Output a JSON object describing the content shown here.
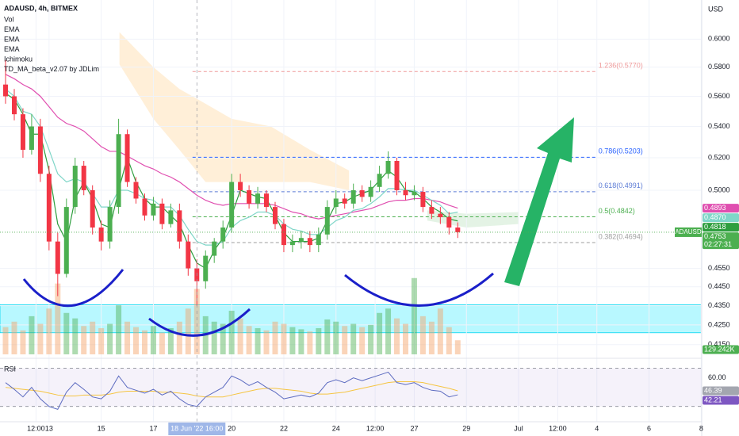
{
  "chart_data": {
    "type": "candlestick",
    "title": "ADAUSD, 4h, BITMEX",
    "legend": [
      "Vol",
      "EMA",
      "EMA",
      "EMA",
      "Ichimoku",
      "TD_MA_beta_v2.07 by JDLim"
    ],
    "currency": "USD",
    "symbol": "ADAUSD",
    "countdown": "02:27:31",
    "log_scale": true,
    "grid": true,
    "up_color": "#4caf50",
    "down_color": "#f23645",
    "xlim": [
      11.12,
      38.02
    ],
    "xticks": [
      {
        "value": 12.5,
        "label": "12:00"
      },
      13,
      15,
      17,
      20,
      22,
      24,
      {
        "value": 25.5,
        "label": "12:00"
      },
      27,
      29,
      {
        "value": 31,
        "label": "Jul"
      },
      {
        "value": 32.5,
        "label": "12:00"
      },
      {
        "value": 34,
        "label": "4"
      },
      {
        "value": 36,
        "label": "6"
      },
      {
        "value": 38,
        "label": "8"
      }
    ],
    "crosshair": {
      "value": 18.667,
      "label": "18 Jun '22  16:00"
    },
    "ylim": [
      0.409,
      0.629
    ],
    "yticks": [
      {
        "value": 0.6,
        "label": "0.6000"
      },
      {
        "value": 0.58,
        "label": "0.5800"
      },
      {
        "value": 0.56,
        "label": "0.5600"
      },
      {
        "value": 0.54,
        "label": "0.5400"
      },
      {
        "value": 0.52,
        "label": "0.5200"
      },
      {
        "value": 0.5,
        "label": "0.5000"
      },
      {
        "value": 0.455,
        "label": "0.4550"
      },
      {
        "value": 0.445,
        "label": "0.4450"
      },
      {
        "value": 0.435,
        "label": "0.4350"
      },
      {
        "value": 0.425,
        "label": "0.4250"
      },
      {
        "value": 0.415,
        "label": "0.4150"
      }
    ],
    "candles": {
      "x": [
        11.333,
        11.667,
        12,
        12.333,
        12.667,
        13,
        13.333,
        13.667,
        14,
        14.333,
        14.667,
        15,
        15.333,
        15.667,
        16,
        16.333,
        16.667,
        17,
        17.333,
        17.667,
        18,
        18.333,
        18.667,
        19,
        19.333,
        19.667,
        20,
        20.333,
        20.667,
        21,
        21.333,
        21.667,
        22,
        22.333,
        22.667,
        23,
        23.333,
        23.667,
        24,
        24.333,
        24.667,
        25,
        25.333,
        25.667,
        26,
        26.333,
        26.667,
        27,
        27.333,
        27.667,
        28,
        28.333,
        28.667
      ],
      "open": [
        0.568,
        0.56,
        0.548,
        0.525,
        0.54,
        0.51,
        0.47,
        0.452,
        0.49,
        0.515,
        0.5,
        0.478,
        0.47,
        0.49,
        0.535,
        0.505,
        0.495,
        0.485,
        0.492,
        0.48,
        0.488,
        0.47,
        0.455,
        0.448,
        0.462,
        0.47,
        0.478,
        0.505,
        0.5,
        0.492,
        0.498,
        0.49,
        0.48,
        0.468,
        0.47,
        0.472,
        0.468,
        0.474,
        0.49,
        0.495,
        0.492,
        0.5,
        0.496,
        0.502,
        0.51,
        0.518,
        0.5,
        0.497,
        0.499,
        0.49,
        0.486,
        0.484,
        0.478
      ],
      "high": [
        0.585,
        0.565,
        0.552,
        0.548,
        0.545,
        0.515,
        0.475,
        0.495,
        0.52,
        0.518,
        0.503,
        0.482,
        0.494,
        0.545,
        0.538,
        0.508,
        0.498,
        0.496,
        0.495,
        0.492,
        0.492,
        0.474,
        0.46,
        0.465,
        0.472,
        0.482,
        0.51,
        0.51,
        0.503,
        0.502,
        0.5,
        0.493,
        0.483,
        0.474,
        0.476,
        0.476,
        0.478,
        0.494,
        0.5,
        0.498,
        0.504,
        0.503,
        0.506,
        0.515,
        0.524,
        0.52,
        0.505,
        0.503,
        0.502,
        0.494,
        0.49,
        0.487,
        0.481
      ],
      "low": [
        0.555,
        0.544,
        0.52,
        0.522,
        0.505,
        0.465,
        0.44,
        0.45,
        0.486,
        0.497,
        0.474,
        0.465,
        0.466,
        0.486,
        0.502,
        0.492,
        0.482,
        0.482,
        0.477,
        0.478,
        0.466,
        0.451,
        0.435,
        0.444,
        0.458,
        0.466,
        0.475,
        0.496,
        0.489,
        0.489,
        0.487,
        0.477,
        0.464,
        0.464,
        0.466,
        0.464,
        0.464,
        0.471,
        0.486,
        0.489,
        0.489,
        0.493,
        0.493,
        0.499,
        0.507,
        0.497,
        0.494,
        0.494,
        0.487,
        0.483,
        0.48,
        0.474,
        0.472
      ],
      "close": [
        0.56,
        0.548,
        0.525,
        0.54,
        0.51,
        0.47,
        0.452,
        0.49,
        0.515,
        0.5,
        0.478,
        0.47,
        0.49,
        0.535,
        0.505,
        0.495,
        0.485,
        0.492,
        0.48,
        0.488,
        0.47,
        0.455,
        0.448,
        0.462,
        0.47,
        0.478,
        0.505,
        0.5,
        0.492,
        0.498,
        0.49,
        0.48,
        0.468,
        0.47,
        0.472,
        0.468,
        0.474,
        0.49,
        0.495,
        0.492,
        0.5,
        0.496,
        0.502,
        0.51,
        0.518,
        0.5,
        0.497,
        0.499,
        0.49,
        0.486,
        0.484,
        0.478,
        0.4753
      ]
    },
    "lines": [
      {
        "color": "#e04fb0",
        "badge_label": "0.4893",
        "values": [
          0.575,
          0.572,
          0.568,
          0.565,
          0.56,
          0.553,
          0.546,
          0.542,
          0.54,
          0.537,
          0.532,
          0.527,
          0.524,
          0.524,
          0.521,
          0.518,
          0.515,
          0.513,
          0.51,
          0.508,
          0.505,
          0.501,
          0.497,
          0.494,
          0.492,
          0.491,
          0.492,
          0.492,
          0.492,
          0.492,
          0.492,
          0.491,
          0.489,
          0.487,
          0.486,
          0.484,
          0.483,
          0.484,
          0.485,
          0.486,
          0.487,
          0.488,
          0.489,
          0.491,
          0.493,
          0.494,
          0.494,
          0.495,
          0.495,
          0.494,
          0.493,
          0.491,
          0.4893
        ]
      },
      {
        "color": "#7fd6c8",
        "badge_label": "0.4870",
        "values": [
          0.565,
          0.56,
          0.55,
          0.548,
          0.54,
          0.525,
          0.51,
          0.505,
          0.507,
          0.505,
          0.498,
          0.49,
          0.49,
          0.5,
          0.5,
          0.498,
          0.495,
          0.494,
          0.49,
          0.49,
          0.485,
          0.477,
          0.47,
          0.468,
          0.468,
          0.47,
          0.478,
          0.482,
          0.484,
          0.487,
          0.487,
          0.485,
          0.48,
          0.477,
          0.476,
          0.474,
          0.474,
          0.478,
          0.482,
          0.484,
          0.488,
          0.489,
          0.492,
          0.496,
          0.501,
          0.501,
          0.5,
          0.5,
          0.497,
          0.494,
          0.491,
          0.486,
          0.487
        ]
      },
      {
        "color": "#2e9e3e",
        "badge_label": "0.4818",
        "values": [
          0.562,
          0.558,
          0.548,
          0.535,
          0.535,
          0.512,
          0.48,
          0.47,
          0.495,
          0.505,
          0.495,
          0.48,
          0.478,
          0.5,
          0.52,
          0.505,
          0.495,
          0.49,
          0.49,
          0.485,
          0.48,
          0.468,
          0.458,
          0.455,
          0.465,
          0.472,
          0.485,
          0.5,
          0.498,
          0.496,
          0.495,
          0.485,
          0.475,
          0.47,
          0.47,
          0.47,
          0.472,
          0.482,
          0.492,
          0.493,
          0.496,
          0.498,
          0.5,
          0.506,
          0.512,
          0.508,
          0.5,
          0.499,
          0.495,
          0.49,
          0.487,
          0.483,
          0.4818
        ]
      }
    ],
    "clouds": [
      {
        "color": "rgba(255,183,77,0.22)",
        "x": [
          15.7,
          17,
          18,
          19,
          20,
          21.5,
          23,
          24.5
        ],
        "upper": [
          0.605,
          0.58,
          0.565,
          0.555,
          0.545,
          0.54,
          0.525,
          0.512
        ],
        "lower": [
          0.582,
          0.545,
          0.525,
          0.505,
          0.505,
          0.505,
          0.505,
          0.5
        ]
      },
      {
        "color": "rgba(76,175,80,0.15)",
        "x": [
          27.5,
          29,
          31
        ],
        "upper": [
          0.488,
          0.486,
          0.487
        ],
        "lower": [
          0.482,
          0.478,
          0.48
        ]
      }
    ],
    "fib_x": [
      18.5,
      34
    ],
    "fibs": [
      {
        "label": "1.236(0.5770)",
        "value": 0.577,
        "color": "#ef9a9a"
      },
      {
        "label": "0.786(0.5203)",
        "value": 0.5203,
        "color": "#2962ff"
      },
      {
        "label": "0.618(0.4991)",
        "value": 0.4991,
        "color": "#5b7bd5"
      },
      {
        "label": "0.5(0.4842)",
        "value": 0.4842,
        "color": "#4caf50"
      },
      {
        "label": "0.382(0.4694)",
        "value": 0.4694,
        "color": "#9e9e9e"
      }
    ],
    "zone": [
      0.421,
      0.4355
    ],
    "zone_color": "rgba(0,229,255,0.28)",
    "volume": {
      "vlim": [
        0,
        800000
      ],
      "up_color": "rgba(76,175,80,0.45)",
      "down_color": "rgba(244,160,100,0.45)",
      "values": [
        250000,
        300000,
        220000,
        350000,
        280000,
        420000,
        650000,
        380000,
        330000,
        260000,
        300000,
        240000,
        280000,
        450000,
        300000,
        250000,
        220000,
        260000,
        200000,
        240000,
        300000,
        420000,
        600000,
        350000,
        300000,
        280000,
        400000,
        330000,
        260000,
        240000,
        220000,
        300000,
        280000,
        250000,
        230000,
        210000,
        240000,
        320000,
        300000,
        260000,
        280000,
        250000,
        270000,
        380000,
        420000,
        330000,
        280000,
        700000,
        350000,
        300000,
        420000,
        250000,
        129242
      ],
      "value_labels": [
        null,
        null,
        null,
        null,
        null,
        null,
        null,
        null,
        null,
        null,
        null,
        null,
        null,
        null,
        null,
        null,
        null,
        null,
        null,
        null,
        null,
        null,
        null,
        null,
        null,
        null,
        null,
        null,
        null,
        null,
        null,
        null,
        null,
        null,
        null,
        null,
        null,
        null,
        null,
        null,
        null,
        null,
        null,
        null,
        null,
        null,
        null,
        null,
        null,
        null,
        null,
        null,
        "129.242K"
      ]
    },
    "rsi": {
      "title": "RSI",
      "ylim": [
        14,
        78
      ],
      "yticks": [
        {
          "value": 60,
          "label": "60.00"
        }
      ],
      "levels": [
        70,
        30
      ],
      "color": "#5c6bc0",
      "ma_color": "#f5c542",
      "values": [
        55,
        48,
        40,
        50,
        38,
        30,
        27,
        45,
        55,
        48,
        40,
        38,
        46,
        62,
        50,
        47,
        44,
        48,
        42,
        46,
        38,
        32,
        30,
        40,
        45,
        50,
        62,
        58,
        52,
        56,
        50,
        45,
        38,
        40,
        42,
        40,
        44,
        55,
        58,
        55,
        60,
        57,
        60,
        63,
        66,
        55,
        53,
        55,
        50,
        47,
        46,
        40,
        42.21
      ],
      "ma_values": [
        50,
        49,
        48,
        47,
        46,
        44,
        42,
        41,
        41,
        42,
        42,
        42,
        43,
        45,
        46,
        46,
        46,
        46,
        45,
        45,
        44,
        43,
        41,
        40,
        40,
        40,
        42,
        44,
        46,
        48,
        49,
        49,
        48,
        47,
        46,
        44,
        43,
        43,
        44,
        45,
        47,
        49,
        51,
        53,
        55,
        56,
        56,
        56,
        55,
        53,
        51,
        49,
        46.39
      ]
    }
  }
}
